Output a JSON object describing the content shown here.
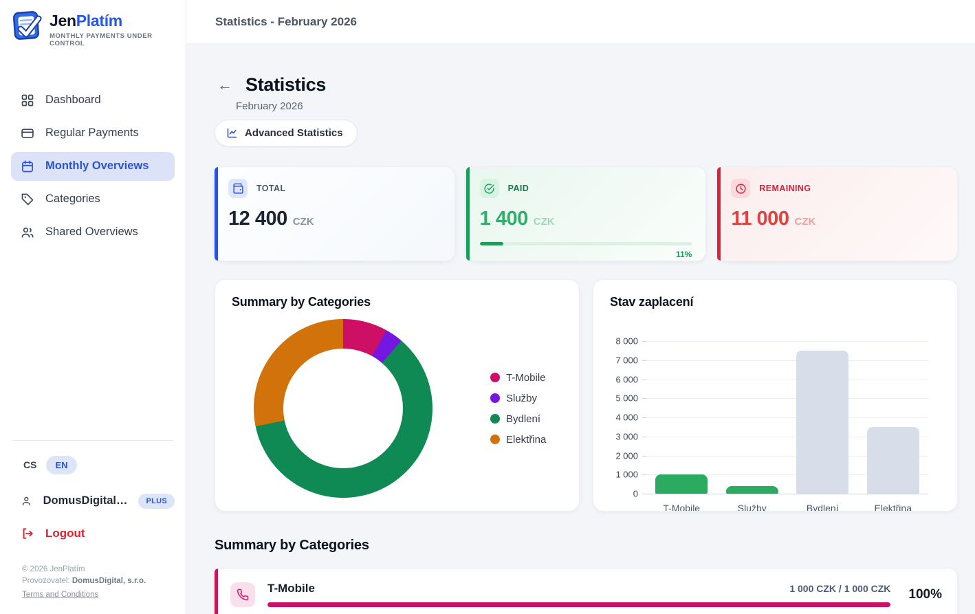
{
  "sidebar": {
    "brand": {
      "name_primary": "Jen",
      "name_secondary": "Platím",
      "tagline": "MONTHLY PAYMENTS UNDER CONTROL"
    },
    "nav": [
      {
        "label": "Dashboard",
        "icon": "dashboard-grid-icon",
        "active": false
      },
      {
        "label": "Regular Payments",
        "icon": "credit-card-icon",
        "active": false
      },
      {
        "label": "Monthly Overviews",
        "icon": "calendar-icon",
        "active": true
      },
      {
        "label": "Categories",
        "icon": "tag-icon",
        "active": false
      },
      {
        "label": "Shared Overviews",
        "icon": "users-icon",
        "active": false
      }
    ],
    "language": {
      "unselected": "CS",
      "selected": "EN"
    },
    "user": {
      "name": "DomusDigital…",
      "plan_badge": "PLUS"
    },
    "logout_label": "Logout",
    "footer": {
      "copyright": "© 2026 JenPlatím",
      "operator_prefix": "Provozovatel: ",
      "operator_name": "DomusDigital, s.r.o.",
      "terms_link": "Terms and Conditions"
    }
  },
  "topbar": {
    "title": "Statistics - February 2026"
  },
  "page": {
    "title": "Statistics",
    "subtitle": "February 2026",
    "advanced_button": "Advanced Statistics"
  },
  "stat_cards": [
    {
      "label": "TOTAL",
      "value": "12 400",
      "currency": "CZK",
      "icon": "wallet-icon",
      "accent": "#2B52DD"
    },
    {
      "label": "PAID",
      "value": "1 400",
      "currency": "CZK",
      "icon": "check-circle-icon",
      "accent": "#1A9E5C",
      "progress_percent": 11,
      "progress_label": "11%"
    },
    {
      "label": "REMAINING",
      "value": "11 000",
      "currency": "CZK",
      "icon": "clock-icon",
      "accent": "#DC2038"
    }
  ],
  "chart_data": [
    {
      "type": "pie",
      "donut": true,
      "title": "Summary by Categories",
      "labels": [
        "T-Mobile",
        "Služby",
        "Bydlení",
        "Elektřina"
      ],
      "values": [
        1000,
        400,
        7500,
        3500
      ],
      "colors": [
        "#CE0F66",
        "#7517E3",
        "#0F8A55",
        "#D2720B"
      ],
      "legend_position": "right",
      "start_angle_deg": 0,
      "total": 12400
    },
    {
      "type": "bar",
      "title": "Stav zaplacení",
      "categories": [
        "T-Mobile",
        "Služby",
        "Bydlení",
        "Elektřina"
      ],
      "values": [
        1000,
        400,
        7500,
        3500
      ],
      "bar_colors": [
        "#2BAB60",
        "#2BAB60",
        "#D8DEE9",
        "#D8DEE9"
      ],
      "ylim": [
        0,
        8000
      ],
      "ytick_step": 1000,
      "ytick_labels": [
        "0",
        "1 000",
        "2 000",
        "3 000",
        "4 000",
        "5 000",
        "6 000",
        "7 000",
        "8 000"
      ],
      "grid": true,
      "legend_position": "none"
    }
  ],
  "summary_section": {
    "title": "Summary by Categories",
    "rows": [
      {
        "name": "T-Mobile",
        "icon": "phone-icon",
        "accent": "#C9135F",
        "amounts_label": "1 000 CZK / 1 000 CZK",
        "percent_label": "100%",
        "progress_percent": 100
      }
    ]
  }
}
